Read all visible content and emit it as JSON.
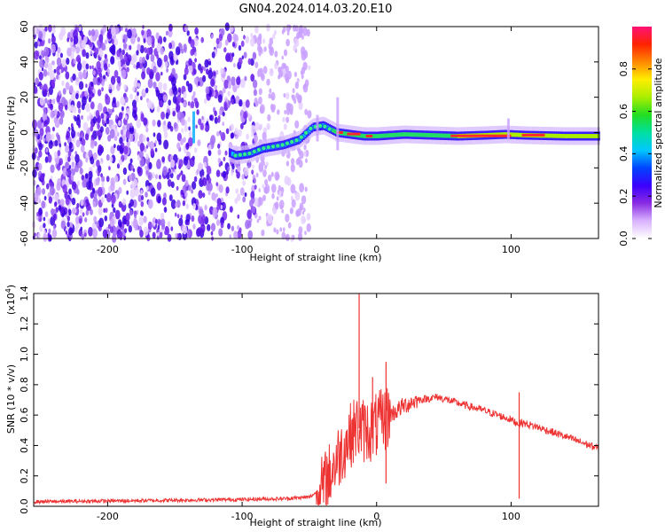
{
  "title": "GN04.2024.014.03.20.E10",
  "chart_data": [
    {
      "type": "heatmap",
      "xlabel": "Height of straight line (km)",
      "ylabel": "Frequency (Hz)",
      "xlim": [
        -255,
        165
      ],
      "ylim": [
        -60,
        60
      ],
      "x_ticks": [
        -200,
        -100,
        0,
        100
      ],
      "y_ticks": [
        -60,
        -40,
        -20,
        0,
        20,
        40,
        60
      ],
      "colorbar": {
        "label": "Normalized spectral amplitude",
        "range": [
          0.0,
          1.0
        ],
        "ticks": [
          "0.0",
          "0.2",
          "0.4",
          "0.6",
          "0.8"
        ],
        "colormap": [
          "#ffffff",
          "#d9b3ff",
          "#8a2be2",
          "#3b00ff",
          "#0044ff",
          "#00c8ff",
          "#00e0a0",
          "#22dd22",
          "#aaee00",
          "#ffee00",
          "#ff8800",
          "#ff2200",
          "#ff1177"
        ]
      },
      "noise_region_x": [
        -255,
        -65
      ],
      "ridge": [
        {
          "x": -140,
          "y": 1
        },
        {
          "x": -137,
          "y": 5
        },
        {
          "x": -130,
          "y": -5
        },
        {
          "x": -105,
          "y": -13
        },
        {
          "x": -95,
          "y": -12
        },
        {
          "x": -85,
          "y": -9
        },
        {
          "x": -70,
          "y": -7
        },
        {
          "x": -58,
          "y": -4
        },
        {
          "x": -48,
          "y": 3
        },
        {
          "x": -40,
          "y": 4
        },
        {
          "x": -30,
          "y": 0
        },
        {
          "x": -20,
          "y": -1
        },
        {
          "x": -10,
          "y": -2
        },
        {
          "x": 0,
          "y": -2
        },
        {
          "x": 20,
          "y": -1
        },
        {
          "x": 40,
          "y": -1.5
        },
        {
          "x": 60,
          "y": -2
        },
        {
          "x": 80,
          "y": -1.5
        },
        {
          "x": 95,
          "y": -1
        },
        {
          "x": 110,
          "y": -1.5
        },
        {
          "x": 140,
          "y": -2
        },
        {
          "x": 165,
          "y": -2
        }
      ]
    },
    {
      "type": "line",
      "xlabel": "Height of straight line (km)",
      "ylabel": "SNR (10 * v/v)",
      "y_multiplier_label": "(x10",
      "y_multiplier_exp": "4",
      "y_multiplier_close": ")",
      "xlim": [
        -255,
        165
      ],
      "ylim": [
        0,
        1.4
      ],
      "x_ticks": [
        -200,
        -100,
        0,
        100
      ],
      "y_ticks": [
        "0.0",
        "0.2",
        "0.4",
        "0.6",
        "0.8",
        "1.0",
        "1.2",
        "1.4"
      ],
      "series_color": "#ee3333",
      "series": [
        {
          "x": [
            -255,
            -200,
            -150,
            -100,
            -70,
            -50,
            -40,
            -30,
            -25,
            -20,
            -15,
            -10,
            -5,
            0,
            10,
            20,
            30,
            40,
            45,
            60,
            80,
            100,
            104,
            106,
            108,
            120,
            140,
            165
          ],
          "y": [
            0.03,
            0.035,
            0.04,
            0.045,
            0.05,
            0.06,
            0.12,
            0.3,
            0.38,
            0.46,
            0.52,
            0.5,
            0.5,
            0.53,
            0.6,
            0.66,
            0.7,
            0.71,
            0.72,
            0.68,
            0.63,
            0.57,
            0.55,
            0.54,
            0.55,
            0.52,
            0.46,
            0.38
          ]
        }
      ],
      "spikes": [
        {
          "x": -13,
          "y": 1.42
        },
        {
          "x": 7,
          "y": 0.95
        },
        {
          "x": -3,
          "y": 0.85
        },
        {
          "x": 106,
          "y": 0.75
        },
        {
          "x": 106,
          "y": 0.05
        },
        {
          "x": 7,
          "y": 0.15
        }
      ]
    }
  ]
}
